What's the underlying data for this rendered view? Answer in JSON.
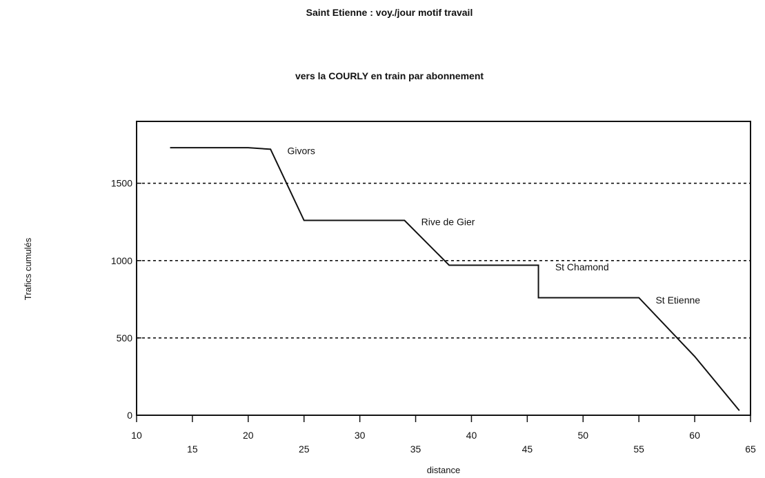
{
  "chart_data": {
    "type": "line",
    "title": "Saint Etienne : voy./jour motif travail",
    "subtitle": "vers la COURLY en train par abonnement",
    "xlabel": "distance",
    "ylabel": "Trafics cumulés",
    "xlim": [
      10,
      65
    ],
    "ylim": [
      0,
      1900
    ],
    "x_ticks": [
      10,
      15,
      20,
      25,
      30,
      35,
      40,
      45,
      50,
      55,
      60,
      65
    ],
    "y_ticks": [
      0,
      500,
      1000,
      1500
    ],
    "grid": "dashed horizontal at 500, 1000, 1500",
    "series": [
      {
        "x": [
          13,
          20,
          22,
          25,
          34,
          38,
          46,
          46,
          55,
          60,
          64
        ],
        "y": [
          1730,
          1730,
          1720,
          1260,
          1260,
          970,
          970,
          760,
          760,
          380,
          30
        ]
      }
    ],
    "annotations": [
      {
        "text": "Givors",
        "x": 23.5,
        "y": 1710
      },
      {
        "text": "Rive   de Gier",
        "x": 35.5,
        "y": 1250
      },
      {
        "text": "St Chamond",
        "x": 47.5,
        "y": 960
      },
      {
        "text": "St Etienne",
        "x": 56.5,
        "y": 745
      }
    ]
  }
}
